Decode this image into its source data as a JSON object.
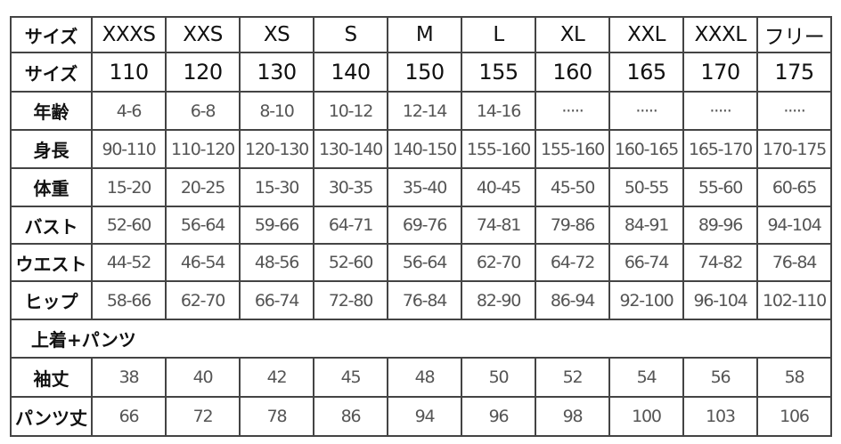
{
  "rows": [
    {
      "label": "サイズ",
      "values": [
        "XXXS",
        "XXS",
        "XS",
        "S",
        "M",
        "L",
        "XL",
        "XXL",
        "XXXL",
        "フリー"
      ]
    },
    {
      "label": "サイズ",
      "values": [
        "110",
        "120",
        "130",
        "140",
        "150",
        "155",
        "160",
        "165",
        "170",
        "175"
      ]
    },
    {
      "label": "年齢",
      "values": [
        "4-6",
        "6-8",
        "8-10",
        "10-12",
        "12-14",
        "14-16",
        "·····",
        "·····",
        "·····",
        "·····"
      ]
    },
    {
      "label": "身長",
      "values": [
        "90-110",
        "110-120",
        "120-130",
        "130-140",
        "140-150",
        "155-160",
        "155-160",
        "160-165",
        "165-170",
        "170-175"
      ]
    },
    {
      "label": "体重",
      "values": [
        "15-20",
        "20-25",
        "15-30",
        "30-35",
        "35-40",
        "40-45",
        "45-50",
        "50-55",
        "55-60",
        "60-65"
      ]
    },
    {
      "label": "バスト",
      "values": [
        "52-60",
        "56-64",
        "59-66",
        "64-71",
        "69-76",
        "74-81",
        "79-86",
        "84-91",
        "89-96",
        "94-104"
      ]
    },
    {
      "label": "ウエスト",
      "values": [
        "44-52",
        "46-54",
        "48-56",
        "52-60",
        "56-64",
        "62-70",
        "64-72",
        "66-74",
        "74-82",
        "76-84"
      ]
    },
    {
      "label": "ヒップ",
      "values": [
        "58-66",
        "62-70",
        "66-74",
        "72-80",
        "76-84",
        "82-90",
        "86-94",
        "92-100",
        "96-104",
        "102-110"
      ]
    }
  ],
  "section_label": "上着+パンツ",
  "rows2": [
    {
      "label": "袖丈",
      "values": [
        "38",
        "40",
        "42",
        "45",
        "48",
        "50",
        "52",
        "54",
        "56",
        "58"
      ]
    },
    {
      "label": "パンツ丈",
      "values": [
        "66",
        "72",
        "78",
        "86",
        "94",
        "96",
        "98",
        "100",
        "103",
        "106"
      ]
    }
  ]
}
